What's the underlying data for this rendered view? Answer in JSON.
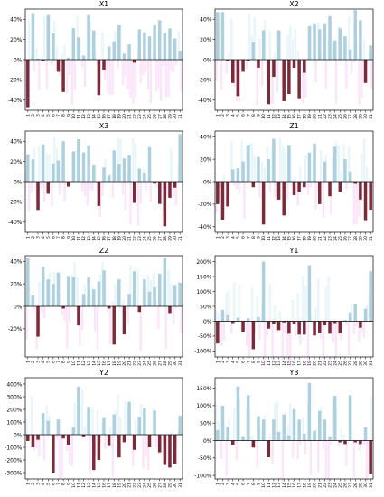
{
  "figure": {
    "layout": "4 rows x 2 columns of bar-chart panels"
  },
  "colors": {
    "positive_bar": "#aecfdc",
    "negative_bar": "#7a2b3a",
    "axis": "#000000",
    "zero_line": "#000000",
    "shadow_positive": "#cfe8f2",
    "shadow_negative": "#f6c6ef"
  },
  "chart_data": [
    {
      "type": "bar",
      "title": "X1",
      "ylim": [
        -50,
        50
      ],
      "yticks": [
        -40,
        -20,
        0,
        20,
        40
      ],
      "tick_format": "percent",
      "categories": [
        "1",
        "2",
        "3",
        "4",
        "5",
        "6",
        "7",
        "8",
        "9",
        "10",
        "11",
        "12",
        "13",
        "14",
        "15",
        "16",
        "17",
        "18",
        "19",
        "20",
        "21",
        "22",
        "23",
        "24",
        "25",
        "26",
        "27",
        "28",
        "29",
        "30",
        "31"
      ],
      "values": [
        -47,
        46,
        1,
        -1,
        44,
        26,
        -12,
        -32,
        2,
        31,
        22,
        4,
        44,
        29,
        -35,
        -10,
        13,
        18,
        34,
        6,
        15,
        -3,
        30,
        27,
        23,
        34,
        39,
        26,
        31,
        21,
        9
      ]
    },
    {
      "type": "bar",
      "title": "X2",
      "ylim": [
        -50,
        50
      ],
      "yticks": [
        -40,
        -20,
        0,
        20,
        40
      ],
      "tick_format": "percent",
      "categories": [
        "1",
        "2",
        "3",
        "4",
        "5",
        "6",
        "7",
        "8",
        "9",
        "10",
        "11",
        "12",
        "13",
        "14",
        "15",
        "16",
        "17",
        "18",
        "19",
        "20",
        "21",
        "22",
        "23",
        "24",
        "25",
        "26",
        "27",
        "28",
        "29",
        "30",
        "31"
      ],
      "values": [
        47,
        47,
        -1,
        -23,
        -36,
        -12,
        -1,
        17,
        -8,
        29,
        -44,
        -17,
        29,
        -41,
        -34,
        -8,
        -39,
        -13,
        33,
        35,
        30,
        35,
        43,
        19,
        31,
        23,
        10,
        49,
        39,
        -23,
        14
      ]
    },
    {
      "type": "bar",
      "title": "X3",
      "ylim": [
        -50,
        50
      ],
      "yticks": [
        -40,
        -20,
        0,
        20,
        40
      ],
      "tick_format": "percent",
      "categories": [
        "1",
        "2",
        "3",
        "4",
        "5",
        "6",
        "7",
        "8",
        "9",
        "10",
        "11",
        "12",
        "13",
        "14",
        "15",
        "16",
        "17",
        "18",
        "19",
        "20",
        "21",
        "22",
        "23",
        "24",
        "25",
        "26",
        "27",
        "28",
        "29",
        "30",
        "31"
      ],
      "values": [
        27,
        22,
        -28,
        37,
        -12,
        18,
        21,
        40,
        -5,
        30,
        42,
        29,
        35,
        16,
        -24,
        14,
        6,
        31,
        17,
        23,
        26,
        -21,
        13,
        8,
        34,
        -2,
        -22,
        -44,
        -16,
        -6,
        47
      ]
    },
    {
      "type": "bar",
      "title": "Z1",
      "ylim": [
        -45,
        45
      ],
      "yticks": [
        -40,
        -20,
        0,
        20,
        40
      ],
      "tick_format": "percent",
      "categories": [
        "1",
        "2",
        "3",
        "4",
        "5",
        "6",
        "7",
        "8",
        "9",
        "10",
        "11",
        "12",
        "13",
        "14",
        "15",
        "16",
        "17",
        "18",
        "19",
        "20",
        "21",
        "22",
        "23",
        "24",
        "25",
        "26",
        "27",
        "28",
        "29",
        "30",
        "31"
      ],
      "values": [
        -20,
        -34,
        -22,
        11,
        12,
        18,
        32,
        -5,
        22,
        -38,
        20,
        38,
        -16,
        -30,
        32,
        -12,
        -9,
        -5,
        26,
        34,
        -20,
        18,
        -13,
        31,
        -9,
        20,
        9,
        -2,
        -16,
        -35,
        -25
      ]
    },
    {
      "type": "bar",
      "title": "Z2",
      "ylim": [
        -45,
        45
      ],
      "yticks": [
        -20,
        0,
        20,
        40
      ],
      "tick_format": "percent",
      "categories": [
        "1",
        "2",
        "3",
        "4",
        "5",
        "6",
        "7",
        "8",
        "9",
        "10",
        "11",
        "12",
        "13",
        "14",
        "15",
        "16",
        "17",
        "18",
        "19",
        "20",
        "21",
        "22",
        "23",
        "24",
        "25",
        "26",
        "27",
        "28",
        "29",
        "30",
        "31"
      ],
      "values": [
        43,
        10,
        -27,
        35,
        24,
        20,
        30,
        -2,
        27,
        26,
        -17,
        11,
        26,
        15,
        22,
        32,
        -2,
        -34,
        24,
        -25,
        11,
        31,
        -5,
        24,
        13,
        17,
        29,
        43,
        -6,
        19,
        21
      ]
    },
    {
      "type": "bar",
      "title": "Y1",
      "ylim": [
        -120,
        220
      ],
      "yticks": [
        -100,
        -50,
        0,
        50,
        100,
        150,
        200
      ],
      "tick_format": "percent",
      "categories": [
        "1",
        "2",
        "3",
        "4",
        "5",
        "6",
        "7",
        "8",
        "9",
        "10",
        "11",
        "12",
        "13",
        "14",
        "15",
        "16",
        "17",
        "18",
        "19",
        "20",
        "21",
        "22",
        "23",
        "24",
        "25",
        "26",
        "27",
        "28",
        "29",
        "30",
        "31"
      ],
      "values": [
        -75,
        38,
        20,
        -6,
        12,
        -35,
        10,
        -94,
        14,
        200,
        -25,
        -8,
        -30,
        -4,
        -42,
        -8,
        -45,
        -45,
        188,
        -48,
        -38,
        -14,
        -42,
        -6,
        -40,
        4,
        30,
        59,
        -22,
        42,
        168
      ]
    },
    {
      "type": "bar",
      "title": "Y2",
      "ylim": [
        -350,
        450
      ],
      "yticks": [
        -300,
        -200,
        -100,
        0,
        100,
        200,
        300,
        400
      ],
      "tick_format": "percent",
      "categories": [
        "1",
        "2",
        "3",
        "4",
        "5",
        "6",
        "7",
        "8",
        "9",
        "10",
        "11",
        "12",
        "13",
        "14",
        "15",
        "16",
        "17",
        "18",
        "19",
        "20",
        "21",
        "22",
        "23",
        "24",
        "25",
        "26",
        "27",
        "28",
        "29",
        "30",
        "31"
      ],
      "values": [
        -50,
        -100,
        -40,
        170,
        110,
        -300,
        120,
        -30,
        -80,
        60,
        380,
        -20,
        220,
        -280,
        -200,
        130,
        -90,
        160,
        -180,
        -60,
        260,
        -120,
        140,
        210,
        -100,
        190,
        -140,
        -240,
        -260,
        -230,
        150
      ]
    },
    {
      "type": "bar",
      "title": "Y3",
      "ylim": [
        -110,
        180
      ],
      "yticks": [
        -100,
        -50,
        0,
        50,
        100,
        150
      ],
      "tick_format": "percent",
      "categories": [
        "1",
        "2",
        "3",
        "4",
        "5",
        "6",
        "7",
        "8",
        "9",
        "10",
        "11",
        "12",
        "13",
        "14",
        "15",
        "16",
        "17",
        "18",
        "19",
        "20",
        "21",
        "22",
        "23",
        "24",
        "25",
        "26",
        "27",
        "28",
        "29",
        "30",
        "31"
      ],
      "values": [
        30,
        100,
        38,
        -12,
        155,
        10,
        130,
        -20,
        70,
        60,
        -48,
        60,
        25,
        75,
        15,
        90,
        60,
        20,
        165,
        28,
        85,
        60,
        10,
        128,
        -5,
        -10,
        130,
        -5,
        -10,
        38,
        -95
      ]
    }
  ]
}
